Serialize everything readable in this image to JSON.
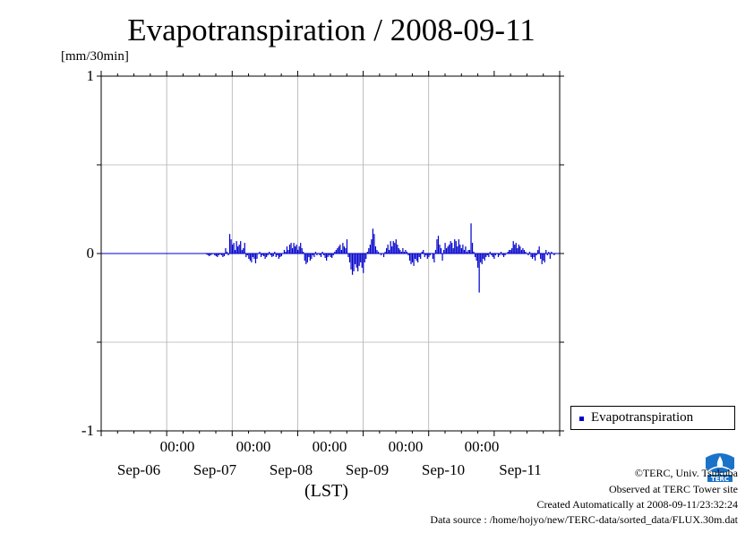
{
  "header": {
    "title": "Evapotranspiration / 2008-09-11",
    "unit": "[mm/30min]"
  },
  "axes": {
    "y_ticks": [
      "1",
      "0",
      "-1"
    ],
    "x_time_labels": [
      "00:00",
      "00:00",
      "00:00",
      "00:00",
      "00:00"
    ],
    "x_date_labels": [
      "Sep-06",
      "Sep-07",
      "Sep-08",
      "Sep-09",
      "Sep-10",
      "Sep-11"
    ],
    "x_label": "(LST)"
  },
  "legend": {
    "label": "Evapotranspiration",
    "color": "#0000cc"
  },
  "footer": {
    "copyright": "©TERC, Univ. Tsukuba",
    "site": "Observed at TERC Tower site",
    "created": "Created Automatically at 2008-09-11/23:32:24",
    "source": "Data source : /home/hojyo/new/TERC-data/sorted_data/FLUX.30m.dat",
    "logo_text": "TERC"
  },
  "chart_data": {
    "type": "bar",
    "title": "Evapotranspiration / 2008-09-11",
    "ylabel": "[mm/30min]",
    "xlabel": "(LST)",
    "ylim": [
      -1,
      1
    ],
    "grid": true,
    "legend_position": "outside-right",
    "x_start": "2008-09-05 00:00",
    "x_end": "2008-09-12 00:00",
    "interval": "30min",
    "series": [
      {
        "name": "Evapotranspiration",
        "color": "#0000cc",
        "values": [
          -0.005,
          -0.01,
          -0.015,
          -0.01,
          -0.005,
          0.0,
          -0.01,
          -0.015,
          -0.02,
          -0.01,
          -0.005,
          -0.01,
          -0.02,
          -0.015,
          0.03,
          0.01,
          -0.01,
          0.11,
          0.08,
          0.05,
          0.06,
          0.02,
          0.07,
          0.04,
          0.05,
          0.07,
          0.02,
          0.03,
          0.06,
          -0.02,
          -0.01,
          -0.03,
          -0.04,
          -0.05,
          -0.02,
          -0.03,
          -0.055,
          -0.03,
          0.0,
          0.01,
          -0.02,
          -0.01,
          -0.015,
          -0.03,
          -0.02,
          -0.01,
          0.01,
          -0.01,
          -0.02,
          -0.015,
          0.01,
          -0.02,
          -0.01,
          -0.03,
          -0.02,
          -0.015,
          0.0,
          0.02,
          0.01,
          0.04,
          0.02,
          0.05,
          0.06,
          0.03,
          0.06,
          0.04,
          0.05,
          0.02,
          0.04,
          0.06,
          0.03,
          0.01,
          -0.04,
          -0.06,
          -0.05,
          -0.02,
          -0.04,
          -0.03,
          -0.01,
          -0.02,
          0.01,
          -0.01,
          0.0,
          -0.01,
          -0.02,
          0.01,
          -0.01,
          -0.025,
          -0.04,
          -0.02,
          -0.01,
          -0.02,
          -0.025,
          -0.01,
          0.01,
          0.02,
          0.03,
          0.04,
          0.05,
          0.02,
          0.06,
          0.04,
          0.03,
          0.08,
          -0.02,
          -0.05,
          -0.09,
          -0.12,
          -0.1,
          -0.06,
          -0.08,
          -0.1,
          -0.07,
          -0.05,
          -0.08,
          -0.11,
          -0.05,
          -0.03,
          0.01,
          0.03,
          0.05,
          0.08,
          0.14,
          0.11,
          0.04,
          0.02,
          0.01,
          0.0,
          -0.01,
          0.0,
          -0.02,
          0.01,
          0.03,
          0.05,
          0.02,
          0.07,
          0.04,
          0.07,
          0.06,
          0.08,
          0.05,
          0.03,
          0.02,
          0.01,
          0.03,
          0.01,
          0.02,
          0.01,
          -0.01,
          -0.04,
          -0.06,
          -0.05,
          -0.07,
          -0.03,
          -0.04,
          -0.05,
          -0.02,
          -0.03,
          0.01,
          0.02,
          -0.02,
          -0.01,
          -0.03,
          -0.02,
          -0.01,
          0.0,
          -0.03,
          -0.05,
          0.02,
          0.08,
          0.1,
          0.05,
          0.03,
          -0.04,
          0.02,
          0.06,
          0.03,
          0.04,
          0.05,
          0.07,
          0.06,
          0.03,
          0.08,
          0.07,
          0.04,
          0.08,
          0.05,
          0.03,
          0.05,
          0.02,
          0.04,
          0.01,
          0.02,
          0.02,
          0.17,
          0.06,
          0.01,
          -0.02,
          -0.04,
          -0.08,
          -0.22,
          -0.05,
          -0.06,
          -0.03,
          -0.04,
          -0.02,
          -0.01,
          -0.02,
          0.01,
          -0.01,
          -0.02,
          -0.03,
          -0.01,
          0.0,
          -0.02,
          -0.01,
          0.01,
          -0.01,
          -0.02,
          -0.01,
          0.0,
          0.01,
          0.02,
          0.02,
          0.03,
          0.07,
          0.05,
          0.06,
          0.03,
          0.05,
          0.04,
          0.02,
          0.03,
          0.02,
          0.01,
          0.0,
          -0.01,
          0.01,
          -0.02,
          -0.03,
          -0.02,
          -0.04,
          -0.01,
          0.02,
          0.04,
          -0.03,
          -0.06,
          -0.04,
          -0.05,
          0.02,
          -0.01,
          0.01,
          -0.03,
          0.01,
          0.0,
          -0.01,
          0.0
        ]
      }
    ]
  }
}
